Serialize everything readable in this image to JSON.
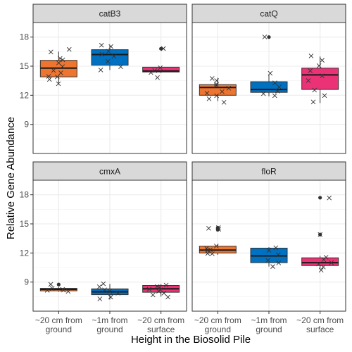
{
  "chart_data": {
    "type": "boxplot",
    "ylabel": "Relative Gene Abundance",
    "xlabel": "Height in the Biosolid Pile",
    "ylim": [
      6,
      19.5
    ],
    "yticks": [
      "9",
      "12",
      "15",
      "18"
    ],
    "categories": [
      "~20 cm from\nground",
      "~1m from\nground",
      "~20 cm from\nsurface"
    ],
    "colors": [
      "#ED7530",
      "#0070C0",
      "#EB3276"
    ],
    "panels": [
      {
        "name": "catB3",
        "boxes": [
          {
            "q1": 13.9,
            "median": 14.8,
            "q3": 15.6,
            "whisker_low": 13.2,
            "whisker_high": 16.5,
            "outliers": []
          },
          {
            "q1": 15.1,
            "median": 16.2,
            "q3": 16.7,
            "whisker_low": 14.6,
            "whisker_high": 17.2,
            "outliers": []
          },
          {
            "q1": 14.4,
            "median": 14.5,
            "q3": 14.9,
            "whisker_low": 14.3,
            "whisker_high": 14.9,
            "outliers": [
              16.8
            ]
          }
        ],
        "points": [
          [
            13.2,
            13.6,
            13.9,
            14.0,
            14.3,
            14.6,
            14.9,
            15.3,
            15.6,
            15.8,
            16.4,
            16.8
          ],
          [
            14.6,
            14.9,
            15.5,
            16.0,
            16.3,
            16.5,
            17.0,
            17.2
          ],
          [
            13.8,
            14.4,
            14.6,
            14.8,
            16.8
          ]
        ]
      },
      {
        "name": "catQ",
        "boxes": [
          {
            "q1": 12.0,
            "median": 12.8,
            "q3": 13.1,
            "whisker_low": 11.4,
            "whisker_high": 13.8,
            "outliers": []
          },
          {
            "q1": 12.3,
            "median": 12.6,
            "q3": 13.4,
            "whisker_low": 11.9,
            "whisker_high": 14.1,
            "outliers": [
              18.0
            ]
          },
          {
            "q1": 12.6,
            "median": 14.1,
            "q3": 14.8,
            "whisker_low": 11.2,
            "whisker_high": 16.0,
            "outliers": []
          }
        ],
        "points": [
          [
            11.3,
            11.6,
            11.9,
            12.2,
            12.4,
            12.7,
            13.0,
            13.2,
            13.5,
            13.7
          ],
          [
            11.9,
            12.2,
            12.5,
            12.9,
            13.3,
            14.2,
            18.0
          ],
          [
            11.3,
            12.0,
            12.6,
            13.5,
            14.0,
            14.6,
            15.1,
            15.6,
            16.1
          ]
        ]
      },
      {
        "name": "cmxA",
        "boxes": [
          {
            "q1": 8.1,
            "median": 8.25,
            "q3": 8.35,
            "whisker_low": 8.0,
            "whisker_high": 8.5,
            "outliers": [
              8.75
            ]
          },
          {
            "q1": 7.7,
            "median": 8.0,
            "q3": 8.3,
            "whisker_low": 7.2,
            "whisker_high": 8.8,
            "outliers": []
          },
          {
            "q1": 7.95,
            "median": 8.3,
            "q3": 8.65,
            "whisker_low": 7.5,
            "whisker_high": 8.8,
            "outliers": []
          }
        ],
        "points": [
          [
            8.0,
            8.1,
            8.2,
            8.3,
            8.4,
            8.7
          ],
          [
            7.2,
            7.5,
            7.8,
            8.0,
            8.2,
            8.5,
            8.8
          ],
          [
            7.4,
            7.6,
            7.8,
            8.0,
            8.2,
            8.3,
            8.5,
            8.6,
            8.7
          ]
        ]
      },
      {
        "name": "floR",
        "boxes": [
          {
            "q1": 12.0,
            "median": 12.3,
            "q3": 12.7,
            "whisker_low": 11.8,
            "whisker_high": 12.9,
            "outliers": [
              14.4,
              14.5,
              14.6
            ]
          },
          {
            "q1": 11.0,
            "median": 11.7,
            "q3": 12.5,
            "whisker_low": 10.6,
            "whisker_high": 12.6,
            "outliers": []
          },
          {
            "q1": 10.7,
            "median": 11.0,
            "q3": 11.5,
            "whisker_low": 10.3,
            "whisker_high": 11.7,
            "outliers": [
              13.9,
              17.7
            ]
          }
        ],
        "points": [
          [
            11.9,
            12.0,
            12.2,
            12.3,
            12.5,
            12.7,
            14.5,
            14.6,
            14.6
          ],
          [
            10.6,
            11.0,
            11.3,
            11.8,
            12.3,
            12.6
          ],
          [
            10.3,
            10.6,
            10.8,
            11.0,
            11.3,
            11.6,
            13.9,
            17.7
          ]
        ]
      }
    ]
  }
}
